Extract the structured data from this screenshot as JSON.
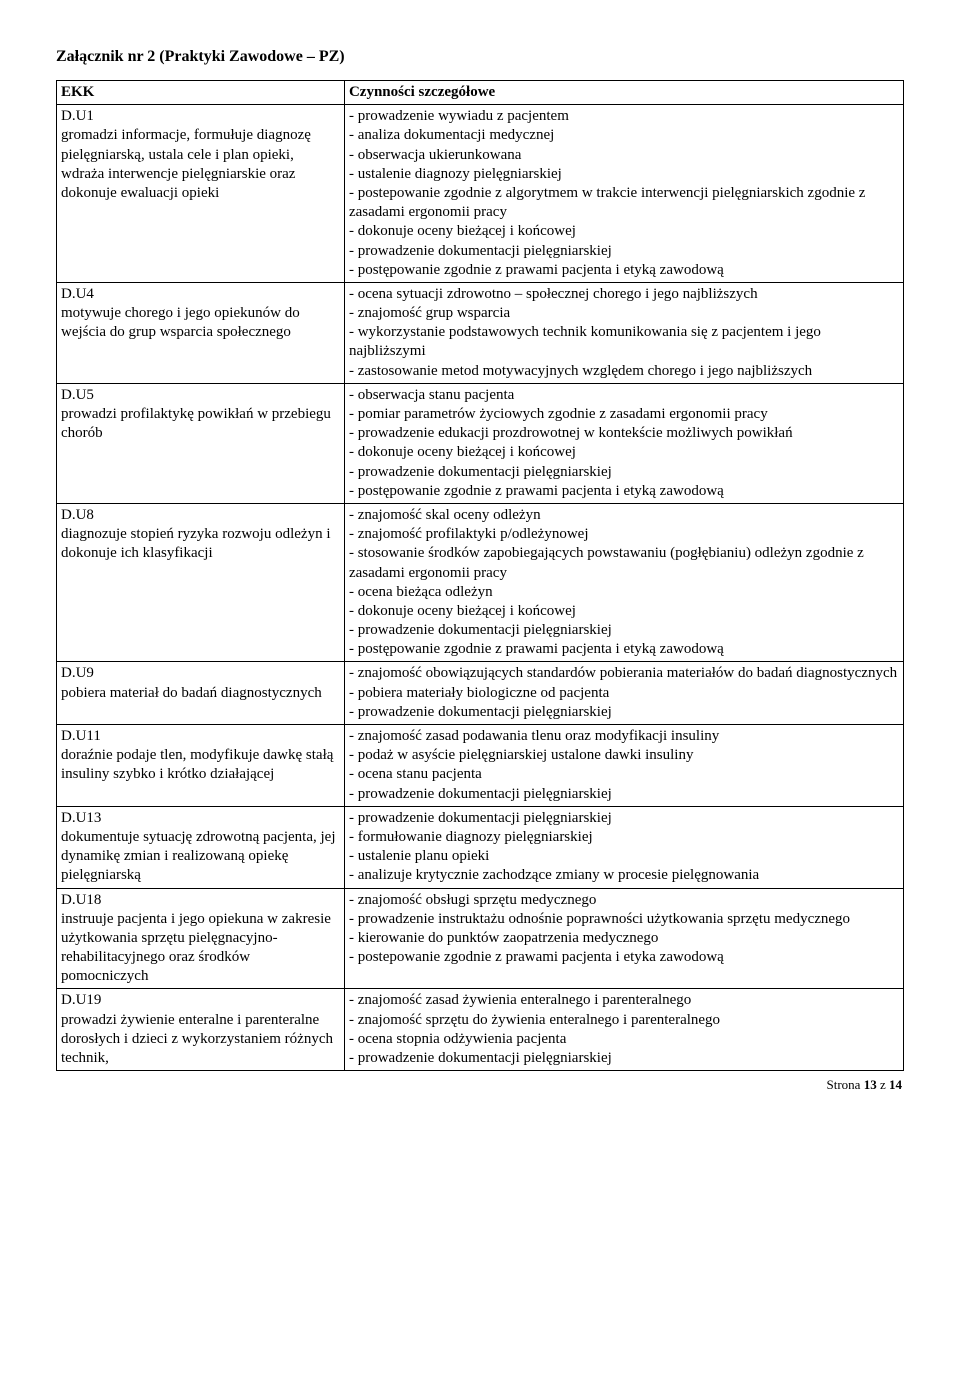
{
  "title": "Załącznik nr 2 (Praktyki Zawodowe – PZ)",
  "header": {
    "left": "EKK",
    "right": "Czynności szczegółowe"
  },
  "rows": [
    {
      "left": "D.U1\ngromadzi informacje, formułuje diagnozę pielęgniarską, ustala cele i plan opieki, wdraża interwencje pielęgniarskie oraz dokonuje ewaluacji opieki",
      "right": "- prowadzenie wywiadu z pacjentem\n- analiza dokumentacji medycznej\n- obserwacja ukierunkowana\n- ustalenie diagnozy pielęgniarskiej\n- postepowanie zgodnie z algorytmem w trakcie interwencji pielęgniarskich zgodnie z zasadami ergonomii pracy\n- dokonuje oceny bieżącej i końcowej\n- prowadzenie dokumentacji pielęgniarskiej\n- postępowanie zgodnie z prawami pacjenta i etyką zawodową"
    },
    {
      "left": "D.U4\nmotywuje chorego i jego opiekunów do wejścia do grup wsparcia społecznego",
      "right": "- ocena sytuacji zdrowotno – społecznej chorego i jego najbliższych\n- znajomość grup wsparcia\n- wykorzystanie podstawowych technik komunikowania się z pacjentem i jego najbliższymi\n- zastosowanie metod motywacyjnych względem chorego i jego najbliższych"
    },
    {
      "left": "D.U5\nprowadzi profilaktykę powikłań w przebiegu chorób",
      "right": "- obserwacja stanu pacjenta\n- pomiar parametrów życiowych zgodnie z zasadami ergonomii pracy\n- prowadzenie edukacji prozdrowotnej w kontekście możliwych powikłań\n- dokonuje oceny bieżącej i końcowej\n- prowadzenie dokumentacji pielęgniarskiej\n- postępowanie zgodnie z prawami pacjenta i etyką zawodową"
    },
    {
      "left": "D.U8\ndiagnozuje stopień ryzyka rozwoju odleżyn i dokonuje ich klasyfikacji",
      "right": "- znajomość skal oceny odleżyn\n- znajomość profilaktyki p/odleżynowej\n- stosowanie środków zapobiegających powstawaniu (pogłębianiu) odleżyn zgodnie z zasadami ergonomii pracy\n- ocena bieżąca odleżyn\n- dokonuje oceny bieżącej i końcowej\n- prowadzenie dokumentacji pielęgniarskiej\n- postępowanie zgodnie z prawami pacjenta i etyką zawodową"
    },
    {
      "left": "D.U9\npobiera materiał do badań diagnostycznych",
      "right": "- znajomość obowiązujących standardów pobierania materiałów do badań diagnostycznych\n- pobiera materiały biologiczne od pacjenta\n- prowadzenie dokumentacji pielęgniarskiej"
    },
    {
      "left": "D.U11\ndoraźnie podaje tlen, modyfikuje dawkę stałą insuliny szybko i krótko działającej",
      "right": "- znajomość zasad podawania tlenu oraz modyfikacji insuliny\n- podaż w asyście pielęgniarskiej ustalone dawki insuliny\n- ocena stanu pacjenta\n- prowadzenie dokumentacji pielęgniarskiej"
    },
    {
      "left": "D.U13\ndokumentuje sytuację zdrowotną pacjenta, jej dynamikę zmian i realizowaną opiekę pielęgniarską",
      "right": "- prowadzenie dokumentacji pielęgniarskiej\n- formułowanie diagnozy pielęgniarskiej\n- ustalenie planu opieki\n- analizuje krytycznie zachodzące zmiany w procesie pielęgnowania"
    },
    {
      "left": "D.U18\ninstruuje pacjenta i jego opiekuna w zakresie użytkowania sprzętu pielęgnacyjno-rehabilitacyjnego oraz środków pomocniczych",
      "right": "- znajomość obsługi sprzętu medycznego\n- prowadzenie instruktażu odnośnie poprawności użytkowania sprzętu medycznego\n- kierowanie do punktów zaopatrzenia medycznego\n- postepowanie zgodnie z prawami pacjenta i etyka zawodową"
    },
    {
      "left": "D.U19\nprowadzi żywienie enteralne i parenteralne dorosłych i dzieci z wykorzystaniem różnych technik,",
      "right": "- znajomość zasad żywienia enteralnego i parenteralnego\n- znajomość sprzętu do żywienia enteralnego i parenteralnego\n- ocena stopnia odżywienia pacjenta\n- prowadzenie dokumentacji pielęgniarskiej"
    }
  ],
  "footer": {
    "prefix": "Strona ",
    "page": "13",
    "sep": " z ",
    "total": "14"
  }
}
